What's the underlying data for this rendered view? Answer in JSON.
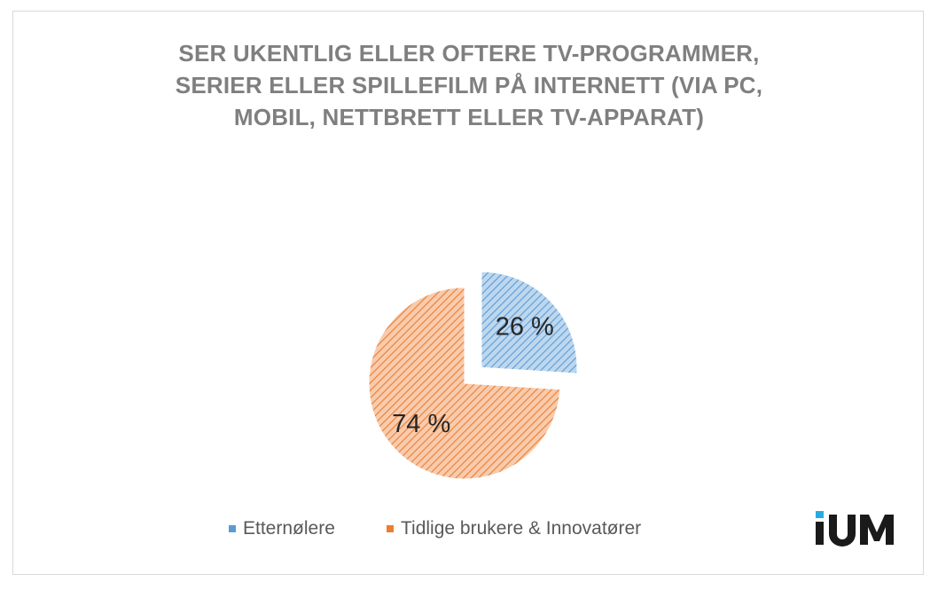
{
  "chart_data": {
    "type": "pie",
    "title": "SER UKENTLIG ELLER OFTERE TV-PROGRAMMER, SERIER ELLER SPILLEFILM PÅ INTERNETT (VIA PC, MOBIL, NETTBRETT ELLER TV-APPARAT)",
    "title_lines": [
      "SER UKENTLIG ELLER OFTERE TV-PROGRAMMER,",
      "SERIER ELLER SPILLEFILM PÅ INTERNETT (VIA PC,",
      "MOBIL, NETTBRETT ELLER TV-APPARAT)"
    ],
    "slices": [
      {
        "name": "Etternølere",
        "value": 26,
        "label": "26 %",
        "color": "#5b9bd5",
        "exploded": true
      },
      {
        "name": "Tidlige brukere & Innovatører",
        "value": 74,
        "label": "74 %",
        "color": "#ed7d31",
        "exploded": false
      }
    ],
    "legend_position": "bottom",
    "fill_style": "diagonal-hatch"
  },
  "logo": {
    "text": "iUM",
    "accent_color": "#29abe2",
    "text_color": "#1a1a1a"
  }
}
